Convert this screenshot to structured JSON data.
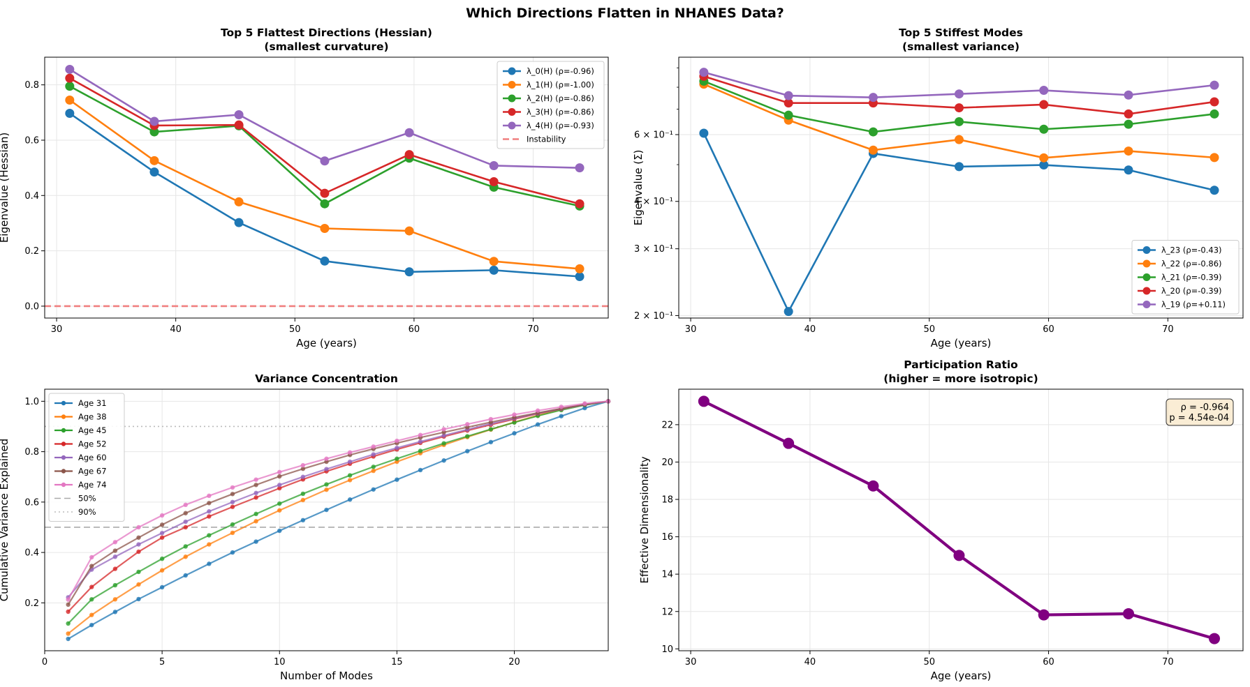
{
  "figure": {
    "suptitle": "Which Directions Flatten in NHANES Data?"
  },
  "chart_data": [
    {
      "id": "hessian",
      "type": "line",
      "title": "Top 5 Flattest Directions (Hessian)",
      "subtitle": "(smallest curvature)",
      "xlabel": "Age (years)",
      "ylabel": "Eigenvalue (Hessian)",
      "xscale": "linear",
      "yscale": "linear",
      "xlim": [
        29,
        76.3
      ],
      "ylim": [
        -0.043,
        0.9
      ],
      "xticks": [
        30,
        40,
        50,
        60,
        70
      ],
      "yticks": [
        0.0,
        0.2,
        0.4,
        0.6,
        0.8
      ],
      "ytick_labels": [
        "0.0",
        "0.2",
        "0.4",
        "0.6",
        "0.8"
      ],
      "grid": true,
      "legend_position": "top-right",
      "x": [
        31.1,
        38.2,
        45.3,
        52.5,
        59.6,
        66.7,
        73.9
      ],
      "series": [
        {
          "name": "λ_0(H) (ρ=-0.96)",
          "color": "#1f77b4",
          "values": [
            0.697,
            0.485,
            0.302,
            0.163,
            0.124,
            0.13,
            0.107
          ]
        },
        {
          "name": "λ_1(H) (ρ=-1.00)",
          "color": "#ff7f0e",
          "values": [
            0.745,
            0.526,
            0.377,
            0.281,
            0.272,
            0.162,
            0.135
          ]
        },
        {
          "name": "λ_2(H) (ρ=-0.86)",
          "color": "#2ca02c",
          "values": [
            0.795,
            0.63,
            0.652,
            0.37,
            0.535,
            0.43,
            0.362
          ]
        },
        {
          "name": "λ_3(H) (ρ=-0.86)",
          "color": "#d62728",
          "values": [
            0.824,
            0.653,
            0.655,
            0.408,
            0.548,
            0.45,
            0.37
          ]
        },
        {
          "name": "λ_4(H) (ρ=-0.93)",
          "color": "#9467bd",
          "values": [
            0.856,
            0.668,
            0.692,
            0.525,
            0.627,
            0.508,
            0.5
          ]
        }
      ],
      "reference_lines": [
        {
          "name": "Instability",
          "axis": "y",
          "value": 0.0,
          "color": "#f08080",
          "dash": "dashed"
        }
      ]
    },
    {
      "id": "stiff",
      "type": "line",
      "title": "Top 5 Stiffest Modes",
      "subtitle": "(smallest variance)",
      "xlabel": "Age (years)",
      "ylabel": "Eigenvalue (Σ)",
      "xscale": "linear",
      "yscale": "log",
      "xlim": [
        29,
        76.3
      ],
      "ylim": [
        0.197,
        0.96
      ],
      "xticks": [
        30,
        40,
        50,
        60,
        70
      ],
      "yticks": [
        0.2,
        0.3,
        0.4,
        0.6
      ],
      "ytick_labels": [
        "2 × 10⁻¹",
        "3 × 10⁻¹",
        "4 × 10⁻¹",
        "6 × 10⁻¹"
      ],
      "grid": true,
      "legend_position": "bottom-right",
      "x": [
        31.1,
        38.2,
        45.3,
        52.5,
        59.6,
        66.7,
        73.9
      ],
      "series": [
        {
          "name": "λ_23 (ρ=-0.43)",
          "color": "#1f77b4",
          "values": [
            0.605,
            0.205,
            0.535,
            0.494,
            0.499,
            0.484,
            0.428
          ]
        },
        {
          "name": "λ_22 (ρ=-0.86)",
          "color": "#ff7f0e",
          "values": [
            0.815,
            0.655,
            0.546,
            0.582,
            0.521,
            0.543,
            0.522
          ]
        },
        {
          "name": "λ_21 (ρ=-0.39)",
          "color": "#2ca02c",
          "values": [
            0.83,
            0.675,
            0.61,
            0.649,
            0.62,
            0.639,
            0.68
          ]
        },
        {
          "name": "λ_20 (ρ=-0.39)",
          "color": "#d62728",
          "values": [
            0.855,
            0.727,
            0.727,
            0.706,
            0.72,
            0.68,
            0.732
          ]
        },
        {
          "name": "λ_19 (ρ=+0.11)",
          "color": "#9467bd",
          "values": [
            0.876,
            0.76,
            0.752,
            0.768,
            0.785,
            0.763,
            0.81
          ]
        }
      ]
    },
    {
      "id": "variance",
      "type": "line",
      "title": "Variance Concentration",
      "xlabel": "Number of Modes",
      "ylabel": "Cumulative Variance Explained",
      "xscale": "linear",
      "yscale": "linear",
      "xlim": [
        0,
        24
      ],
      "ylim": [
        0.01,
        1.048
      ],
      "xticks": [
        0,
        5,
        10,
        15,
        20
      ],
      "yticks": [
        0.2,
        0.4,
        0.6,
        0.8,
        1.0
      ],
      "ytick_labels": [
        "0.2",
        "0.4",
        "0.6",
        "0.8",
        "1.0"
      ],
      "grid": true,
      "legend_position": "top-left",
      "x": [
        1,
        2,
        3,
        4,
        5,
        6,
        7,
        8,
        9,
        10,
        11,
        12,
        13,
        14,
        15,
        16,
        17,
        18,
        19,
        20,
        21,
        22,
        23,
        24
      ],
      "series": [
        {
          "name": "Age 31",
          "color": "#1f77b4",
          "values": [
            0.057,
            0.112,
            0.164,
            0.215,
            0.262,
            0.309,
            0.355,
            0.4,
            0.443,
            0.486,
            0.528,
            0.569,
            0.61,
            0.65,
            0.689,
            0.727,
            0.765,
            0.802,
            0.838,
            0.873,
            0.908,
            0.941,
            0.973,
            1.0
          ]
        },
        {
          "name": "Age 38",
          "color": "#ff7f0e",
          "values": [
            0.078,
            0.152,
            0.214,
            0.273,
            0.329,
            0.383,
            0.432,
            0.478,
            0.524,
            0.567,
            0.608,
            0.649,
            0.687,
            0.724,
            0.76,
            0.794,
            0.827,
            0.858,
            0.888,
            0.917,
            0.944,
            0.968,
            0.988,
            1.0
          ]
        },
        {
          "name": "Age 45",
          "color": "#2ca02c",
          "values": [
            0.118,
            0.214,
            0.27,
            0.323,
            0.375,
            0.424,
            0.468,
            0.511,
            0.553,
            0.594,
            0.633,
            0.67,
            0.706,
            0.74,
            0.772,
            0.803,
            0.833,
            0.861,
            0.889,
            0.916,
            0.942,
            0.965,
            0.985,
            1.0
          ]
        },
        {
          "name": "Age 52",
          "color": "#d62728",
          "values": [
            0.165,
            0.263,
            0.335,
            0.403,
            0.459,
            0.5,
            0.543,
            0.581,
            0.618,
            0.655,
            0.69,
            0.722,
            0.752,
            0.781,
            0.809,
            0.835,
            0.86,
            0.884,
            0.907,
            0.929,
            0.951,
            0.97,
            0.987,
            1.0
          ]
        },
        {
          "name": "Age 60",
          "color": "#9467bd",
          "values": [
            0.222,
            0.332,
            0.383,
            0.432,
            0.477,
            0.522,
            0.563,
            0.6,
            0.636,
            0.668,
            0.7,
            0.731,
            0.76,
            0.789,
            0.815,
            0.84,
            0.864,
            0.888,
            0.911,
            0.932,
            0.952,
            0.97,
            0.987,
            1.0
          ]
        },
        {
          "name": "Age 67",
          "color": "#8c564b",
          "values": [
            0.193,
            0.346,
            0.407,
            0.459,
            0.51,
            0.556,
            0.596,
            0.632,
            0.668,
            0.702,
            0.732,
            0.76,
            0.787,
            0.811,
            0.834,
            0.856,
            0.877,
            0.897,
            0.917,
            0.936,
            0.954,
            0.971,
            0.987,
            1.0
          ]
        },
        {
          "name": "Age 74",
          "color": "#e377c2",
          "values": [
            0.213,
            0.381,
            0.441,
            0.5,
            0.547,
            0.589,
            0.625,
            0.658,
            0.689,
            0.719,
            0.746,
            0.772,
            0.797,
            0.82,
            0.843,
            0.866,
            0.889,
            0.909,
            0.929,
            0.947,
            0.963,
            0.978,
            0.991,
            1.0
          ]
        }
      ],
      "reference_lines": [
        {
          "name": "50%",
          "axis": "y",
          "value": 0.5,
          "color": "#aaaaaa",
          "dash": "dashed"
        },
        {
          "name": "90%",
          "axis": "y",
          "value": 0.9,
          "color": "#bbbbbb",
          "dash": "dotted"
        }
      ]
    },
    {
      "id": "participation",
      "type": "line",
      "title": "Participation Ratio",
      "subtitle": "(higher = more isotropic)",
      "xlabel": "Age (years)",
      "ylabel": "Effective Dimensionality",
      "xscale": "linear",
      "yscale": "linear",
      "xlim": [
        29,
        76.3
      ],
      "ylim": [
        9.9,
        23.9
      ],
      "xticks": [
        30,
        40,
        50,
        60,
        70
      ],
      "yticks": [
        10,
        12,
        14,
        16,
        18,
        20,
        22
      ],
      "ytick_labels": [
        "10",
        "12",
        "14",
        "16",
        "18",
        "20",
        "22"
      ],
      "grid": true,
      "x": [
        31.1,
        38.2,
        45.3,
        52.5,
        59.6,
        66.7,
        73.9
      ],
      "series": [
        {
          "color": "#800080",
          "values": [
            23.25,
            21.0,
            18.72,
            15.0,
            11.82,
            11.88,
            10.55
          ]
        }
      ],
      "annotation": {
        "lines": [
          "ρ = -0.964",
          "p = 4.54e-04"
        ],
        "position": "top-right"
      }
    }
  ]
}
